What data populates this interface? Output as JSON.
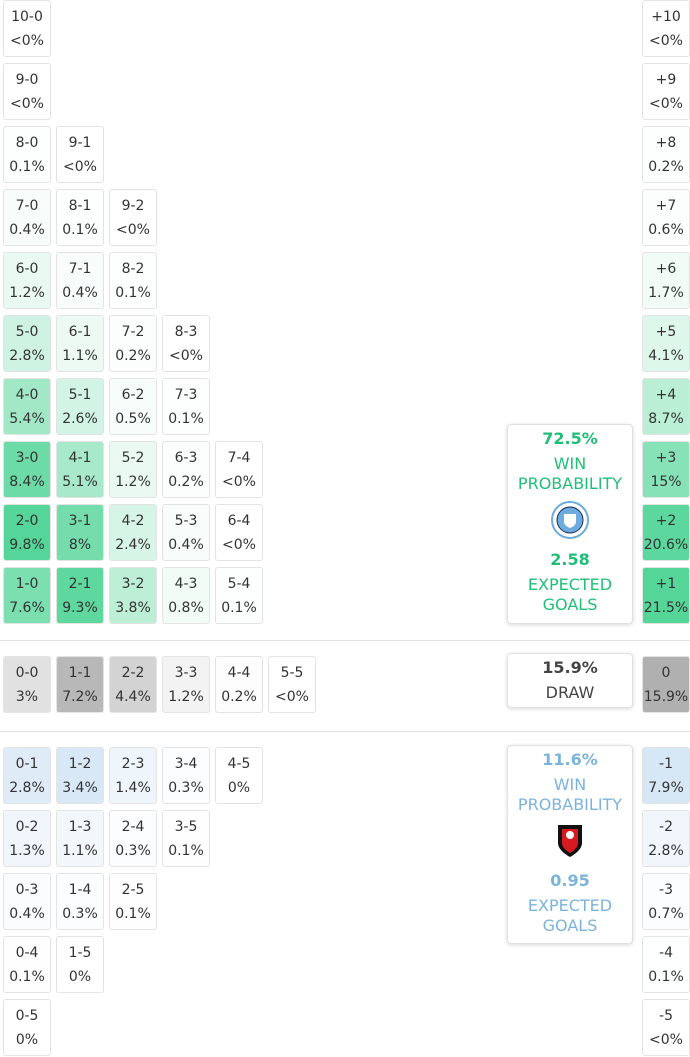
{
  "home_grid": {
    "rows": [
      [
        {
          "score": "10-0",
          "prob": "<0%"
        }
      ],
      [
        {
          "score": "9-0",
          "prob": "<0%"
        }
      ],
      [
        {
          "score": "8-0",
          "prob": "0.1%"
        },
        {
          "score": "9-1",
          "prob": "<0%"
        }
      ],
      [
        {
          "score": "7-0",
          "prob": "0.4%"
        },
        {
          "score": "8-1",
          "prob": "0.1%"
        },
        {
          "score": "9-2",
          "prob": "<0%"
        }
      ],
      [
        {
          "score": "6-0",
          "prob": "1.2%"
        },
        {
          "score": "7-1",
          "prob": "0.4%"
        },
        {
          "score": "8-2",
          "prob": "0.1%"
        }
      ],
      [
        {
          "score": "5-0",
          "prob": "2.8%"
        },
        {
          "score": "6-1",
          "prob": "1.1%"
        },
        {
          "score": "7-2",
          "prob": "0.2%"
        },
        {
          "score": "8-3",
          "prob": "<0%"
        }
      ],
      [
        {
          "score": "4-0",
          "prob": "5.4%"
        },
        {
          "score": "5-1",
          "prob": "2.6%"
        },
        {
          "score": "6-2",
          "prob": "0.5%"
        },
        {
          "score": "7-3",
          "prob": "0.1%"
        }
      ],
      [
        {
          "score": "3-0",
          "prob": "8.4%"
        },
        {
          "score": "4-1",
          "prob": "5.1%"
        },
        {
          "score": "5-2",
          "prob": "1.2%"
        },
        {
          "score": "6-3",
          "prob": "0.2%"
        },
        {
          "score": "7-4",
          "prob": "<0%"
        }
      ],
      [
        {
          "score": "2-0",
          "prob": "9.8%"
        },
        {
          "score": "3-1",
          "prob": "8%"
        },
        {
          "score": "4-2",
          "prob": "2.4%"
        },
        {
          "score": "5-3",
          "prob": "0.4%"
        },
        {
          "score": "6-4",
          "prob": "<0%"
        }
      ],
      [
        {
          "score": "1-0",
          "prob": "7.6%"
        },
        {
          "score": "2-1",
          "prob": "9.3%"
        },
        {
          "score": "3-2",
          "prob": "3.8%"
        },
        {
          "score": "4-3",
          "prob": "0.8%"
        },
        {
          "score": "5-4",
          "prob": "0.1%"
        }
      ]
    ]
  },
  "home_margins": [
    {
      "score": "+10",
      "prob": "<0%"
    },
    {
      "score": "+9",
      "prob": "<0%"
    },
    {
      "score": "+8",
      "prob": "0.2%"
    },
    {
      "score": "+7",
      "prob": "0.6%"
    },
    {
      "score": "+6",
      "prob": "1.7%"
    },
    {
      "score": "+5",
      "prob": "4.1%"
    },
    {
      "score": "+4",
      "prob": "8.7%"
    },
    {
      "score": "+3",
      "prob": "15%"
    },
    {
      "score": "+2",
      "prob": "20.6%"
    },
    {
      "score": "+1",
      "prob": "21.5%"
    }
  ],
  "draw_row": [
    {
      "score": "0-0",
      "prob": "3%"
    },
    {
      "score": "1-1",
      "prob": "7.2%"
    },
    {
      "score": "2-2",
      "prob": "4.4%"
    },
    {
      "score": "3-3",
      "prob": "1.2%"
    },
    {
      "score": "4-4",
      "prob": "0.2%"
    },
    {
      "score": "5-5",
      "prob": "<0%"
    }
  ],
  "draw_margin": {
    "score": "0",
    "prob": "15.9%"
  },
  "away_grid": {
    "rows": [
      [
        {
          "score": "0-1",
          "prob": "2.8%"
        },
        {
          "score": "1-2",
          "prob": "3.4%"
        },
        {
          "score": "2-3",
          "prob": "1.4%"
        },
        {
          "score": "3-4",
          "prob": "0.3%"
        },
        {
          "score": "4-5",
          "prob": "0%"
        }
      ],
      [
        {
          "score": "0-2",
          "prob": "1.3%"
        },
        {
          "score": "1-3",
          "prob": "1.1%"
        },
        {
          "score": "2-4",
          "prob": "0.3%"
        },
        {
          "score": "3-5",
          "prob": "0.1%"
        }
      ],
      [
        {
          "score": "0-3",
          "prob": "0.4%"
        },
        {
          "score": "1-4",
          "prob": "0.3%"
        },
        {
          "score": "2-5",
          "prob": "0.1%"
        }
      ],
      [
        {
          "score": "0-4",
          "prob": "0.1%"
        },
        {
          "score": "1-5",
          "prob": "0%"
        }
      ],
      [
        {
          "score": "0-5",
          "prob": "0%"
        }
      ]
    ]
  },
  "away_margins": [
    {
      "score": "-1",
      "prob": "7.9%"
    },
    {
      "score": "-2",
      "prob": "2.8%"
    },
    {
      "score": "-3",
      "prob": "0.7%"
    },
    {
      "score": "-4",
      "prob": "0.1%"
    },
    {
      "score": "-5",
      "prob": "<0%"
    }
  ],
  "home_card": {
    "win_pct": "72.5%",
    "win_label": "WIN PROBABILITY",
    "xg": "2.58",
    "xg_label": "EXPECTED GOALS"
  },
  "draw_card": {
    "pct": "15.9%",
    "label": "DRAW"
  },
  "away_card": {
    "win_pct": "11.6%",
    "win_label": "WIN PROBABILITY",
    "xg": "0.95",
    "xg_label": "EXPECTED GOALS"
  }
}
